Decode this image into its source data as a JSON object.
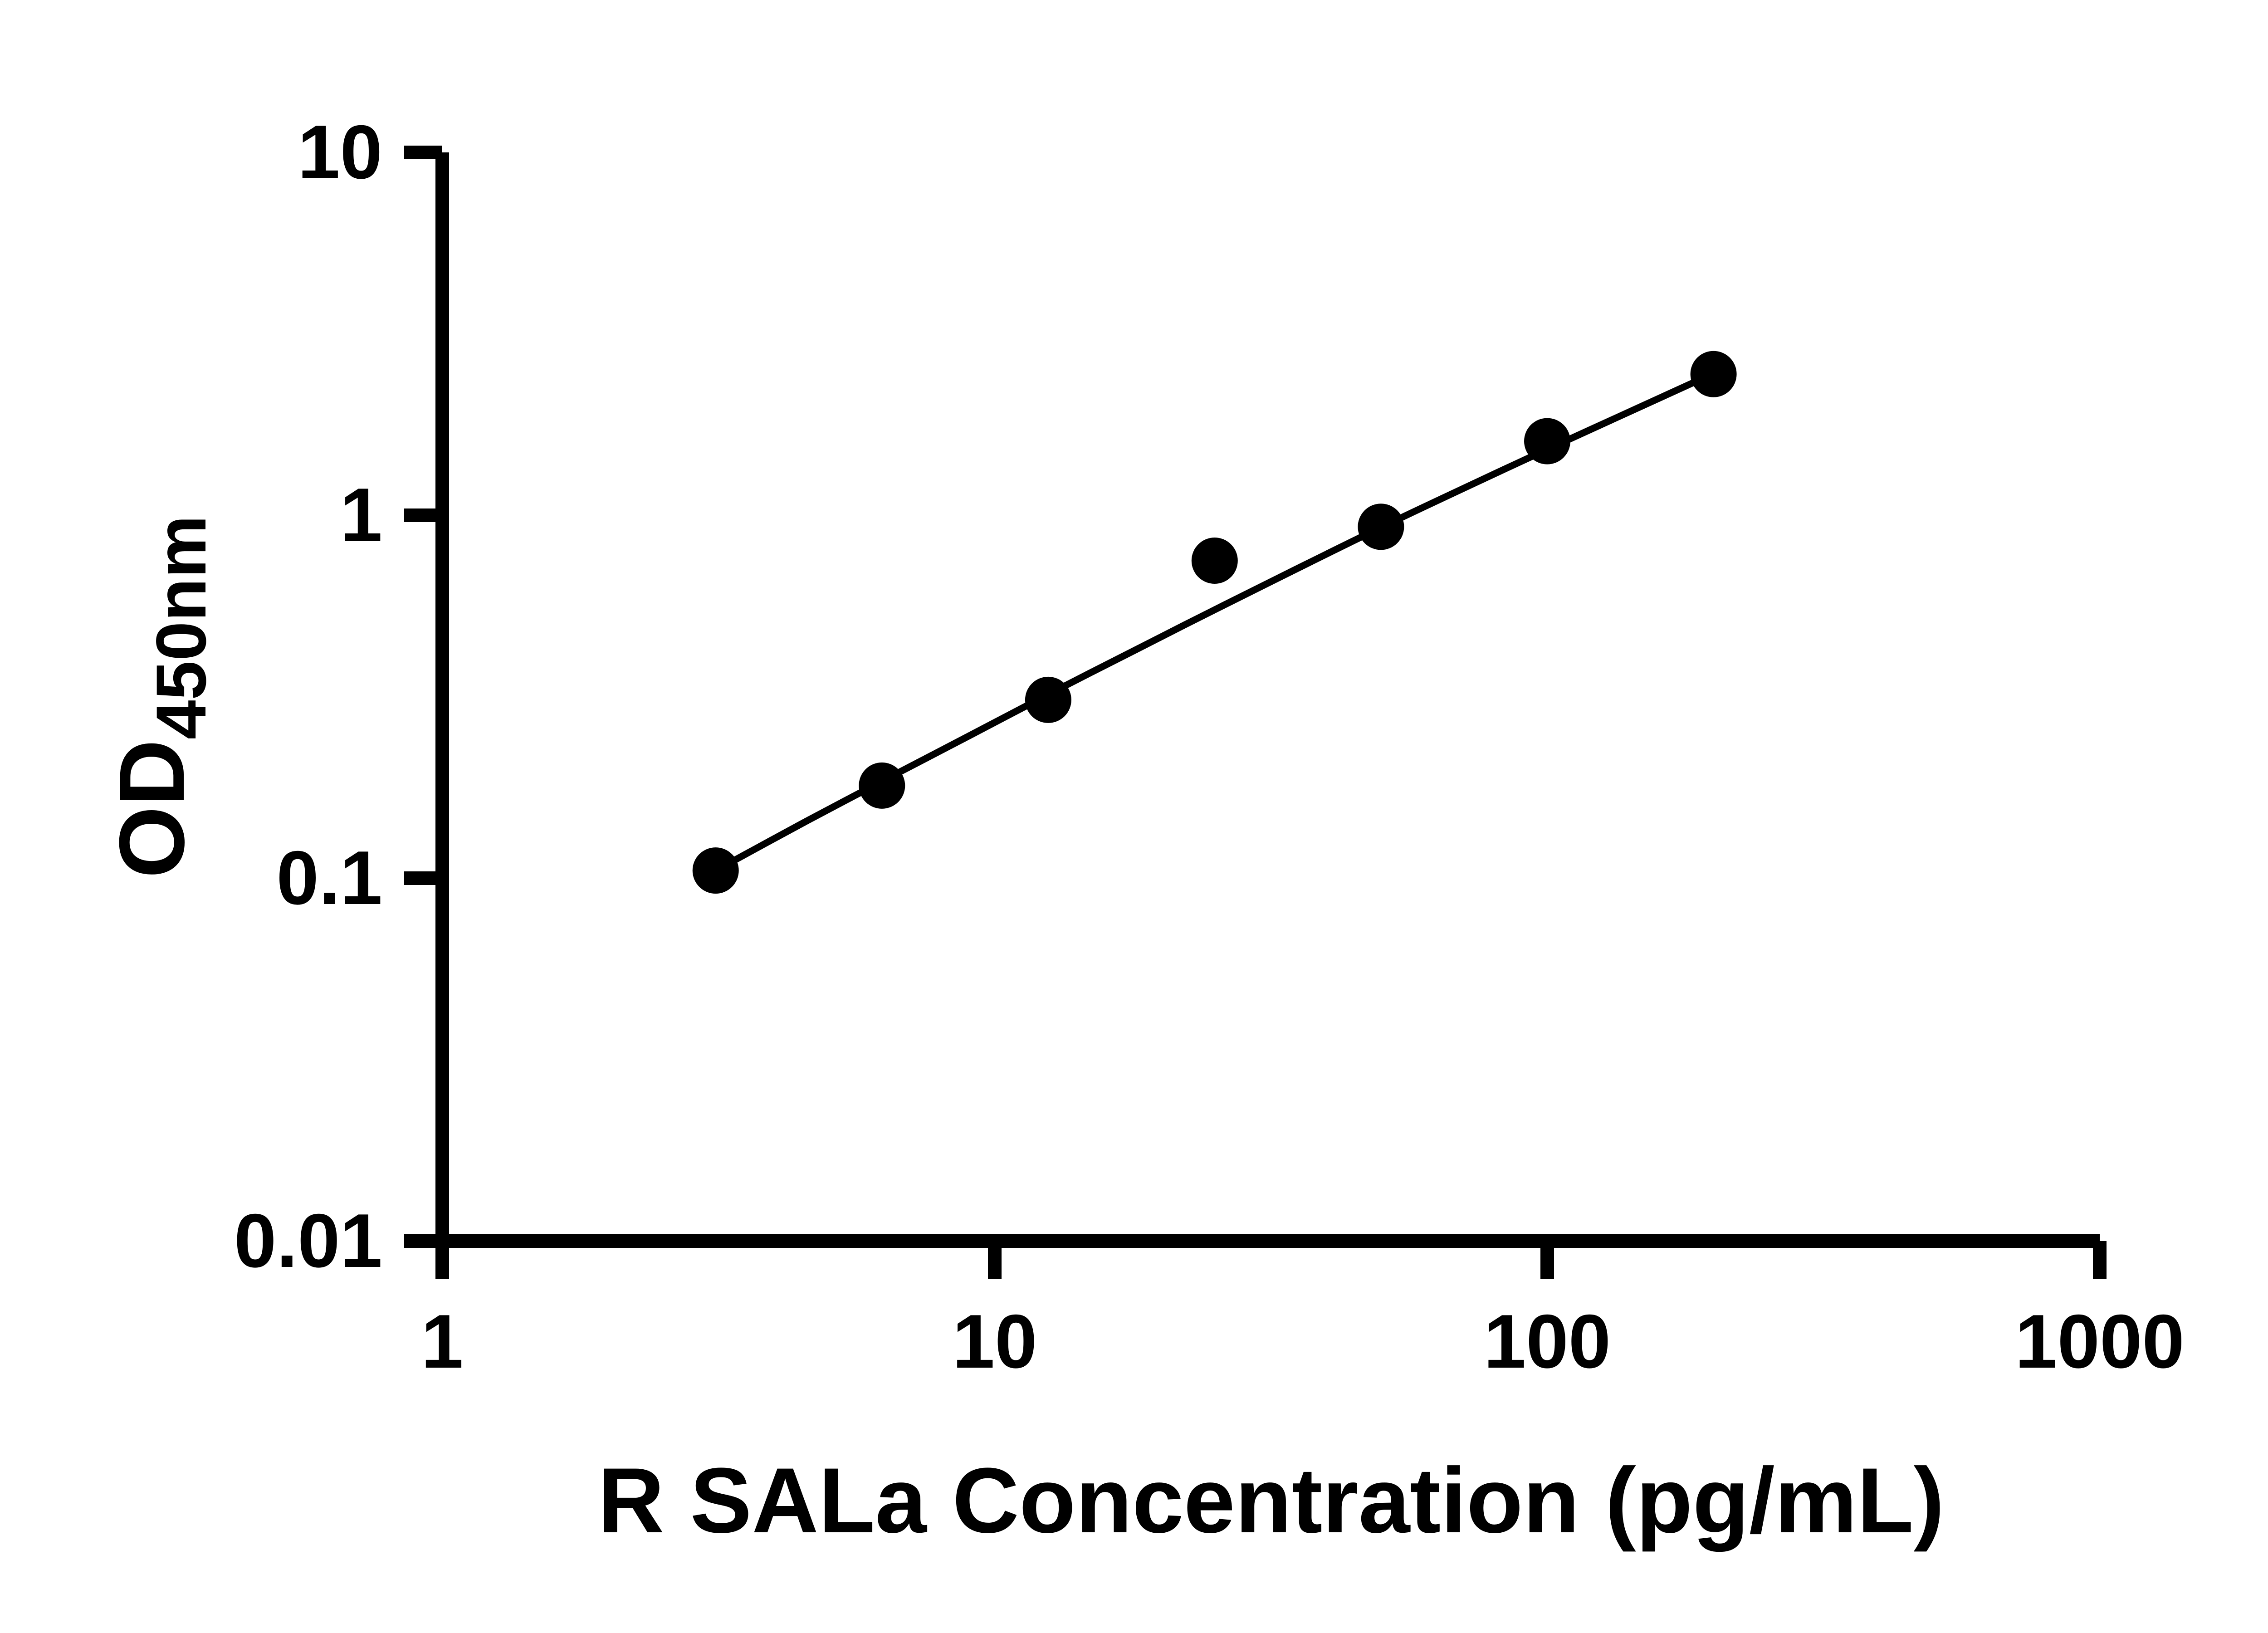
{
  "page": {
    "background_color": "#ffffff",
    "ink_color": "#000000"
  },
  "chart_data": {
    "type": "scatter",
    "title": "",
    "xlabel": "R SALa Concentration (pg/mL)",
    "ylabel": "OD",
    "ylabel_subscript": "450nm",
    "x_scale": "log",
    "y_scale": "log",
    "xlim": [
      1,
      1000
    ],
    "ylim": [
      0.01,
      10
    ],
    "x_ticks": [
      1,
      10,
      100,
      1000
    ],
    "x_tick_labels": [
      "1",
      "10",
      "100",
      "1000"
    ],
    "y_ticks": [
      0.01,
      0.1,
      1,
      10
    ],
    "y_tick_labels": [
      "0.01",
      "0.1",
      "1",
      "10"
    ],
    "grid": "off",
    "legend": "none",
    "ink_color": "#000000",
    "series": [
      {
        "name": "standard-curve-points",
        "marker": "circle",
        "color": "#000000",
        "x": [
          3.125,
          6.25,
          12.5,
          25,
          50,
          100,
          200
        ],
        "y": [
          0.105,
          0.18,
          0.31,
          0.75,
          0.93,
          1.6,
          2.45
        ]
      }
    ],
    "fit_curve": {
      "name": "four-parameter-fit",
      "color": "#000000",
      "x": [
        3.125,
        4.5,
        6.25,
        9,
        12.5,
        18,
        25,
        35,
        50,
        70,
        100,
        140,
        200
      ],
      "y": [
        0.105,
        0.142,
        0.185,
        0.247,
        0.321,
        0.426,
        0.549,
        0.709,
        0.926,
        1.18,
        1.52,
        1.92,
        2.46
      ]
    }
  }
}
